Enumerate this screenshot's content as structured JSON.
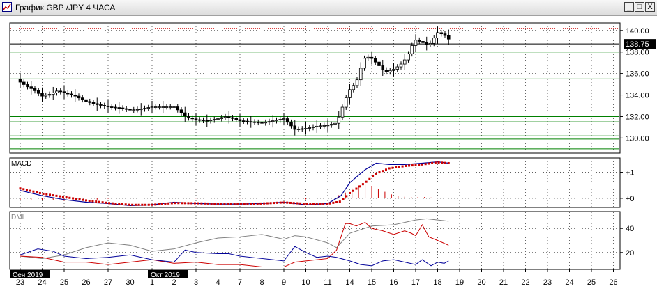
{
  "window": {
    "title": "График GBP /JPY  4 ЧАСА",
    "buttons": {
      "minimize": "_",
      "maximize": "□",
      "close": "X"
    }
  },
  "chart_data": [
    {
      "type": "candlestick",
      "title": "",
      "x_tick_labels": [
        "23",
        "24",
        "25",
        "26",
        "27",
        "30",
        "1",
        "2",
        "3",
        "4",
        "7",
        "8",
        "9",
        "10",
        "11",
        "14",
        "15",
        "16",
        "17",
        "18",
        "19",
        "20",
        "21",
        "22",
        "23",
        "24",
        "25",
        "26"
      ],
      "period_labels": [
        "Сен 2019",
        "Окт 2019"
      ],
      "ylim": [
        128.6,
        140.7
      ],
      "y_ticks": [
        130.0,
        132.0,
        134.0,
        136.0,
        138.0,
        140.0
      ],
      "y_tick_labels": [
        "130.00",
        "132.00",
        "134.00",
        "136.00",
        "138.00",
        "140.00"
      ],
      "current_price": 138.75,
      "current_price_label": "138.75",
      "horizontal_levels": [
        {
          "value": 140.2,
          "color": "#cc0000",
          "style": "dotted"
        },
        {
          "value": 138.75,
          "color": "#000000",
          "style": "solid"
        },
        {
          "value": 138.0,
          "color": "#008000",
          "style": "solid"
        },
        {
          "value": 135.5,
          "color": "#008000",
          "style": "solid"
        },
        {
          "value": 134.0,
          "color": "#008000",
          "style": "solid"
        },
        {
          "value": 132.0,
          "color": "#008000",
          "style": "solid"
        },
        {
          "value": 131.5,
          "color": "#008000",
          "style": "solid"
        },
        {
          "value": 130.2,
          "color": "#008000",
          "style": "solid"
        },
        {
          "value": 129.9,
          "color": "#008000",
          "style": "solid"
        },
        {
          "value": 129.0,
          "color": "#008000",
          "style": "solid"
        }
      ],
      "close_path": [
        [
          0,
          135.2
        ],
        [
          0.3,
          134.8
        ],
        [
          0.6,
          134.5
        ],
        [
          1.0,
          133.9
        ],
        [
          1.4,
          134.1
        ],
        [
          1.7,
          134.4
        ],
        [
          2.0,
          134.2
        ],
        [
          2.5,
          133.9
        ],
        [
          3.0,
          133.4
        ],
        [
          3.5,
          133.1
        ],
        [
          4.0,
          132.9
        ],
        [
          4.5,
          132.8
        ],
        [
          5.0,
          132.6
        ],
        [
          5.5,
          132.7
        ],
        [
          6.0,
          132.9
        ],
        [
          6.5,
          132.9
        ],
        [
          7.0,
          132.9
        ],
        [
          7.3,
          132.4
        ],
        [
          7.6,
          131.9
        ],
        [
          8.0,
          131.7
        ],
        [
          8.5,
          131.6
        ],
        [
          9.0,
          131.8
        ],
        [
          9.3,
          132.0
        ],
        [
          9.7,
          131.8
        ],
        [
          10.0,
          131.6
        ],
        [
          10.5,
          131.5
        ],
        [
          11.0,
          131.4
        ],
        [
          11.5,
          131.6
        ],
        [
          12.0,
          131.8
        ],
        [
          12.2,
          131.4
        ],
        [
          12.5,
          130.8
        ],
        [
          13.0,
          130.9
        ],
        [
          13.5,
          131.1
        ],
        [
          14.0,
          131.2
        ],
        [
          14.4,
          131.4
        ],
        [
          14.6,
          132.5
        ],
        [
          14.8,
          133.6
        ],
        [
          15.0,
          134.5
        ],
        [
          15.3,
          135.2
        ],
        [
          15.5,
          136.5
        ],
        [
          15.7,
          137.6
        ],
        [
          16.0,
          137.4
        ],
        [
          16.3,
          136.8
        ],
        [
          16.6,
          136.1
        ],
        [
          17.0,
          136.4
        ],
        [
          17.3,
          136.8
        ],
        [
          17.6,
          137.5
        ],
        [
          17.8,
          138.5
        ],
        [
          18.0,
          139.1
        ],
        [
          18.3,
          138.9
        ],
        [
          18.6,
          138.6
        ],
        [
          18.8,
          139.2
        ],
        [
          19.0,
          139.8
        ],
        [
          19.3,
          139.6
        ],
        [
          19.5,
          139.2
        ]
      ],
      "candle_x_start": 0,
      "candle_x_end": 19.5,
      "candle_count": 118,
      "bar_width_days": 0.12,
      "wick_pad": [
        0.25,
        0.55
      ],
      "candle_colors": {
        "bull": "#ffffff",
        "bear": "#000000",
        "wick": "#000000"
      }
    },
    {
      "type": "line",
      "title": "MACD",
      "y_tick_labels": [
        "+1",
        "+0"
      ],
      "y_ticks": [
        1,
        0
      ],
      "ylim": [
        -0.35,
        1.55
      ],
      "series": [
        {
          "role": "macd",
          "color": "#000099",
          "points": [
            [
              0,
              0.3
            ],
            [
              1,
              0.1
            ],
            [
              2,
              -0.05
            ],
            [
              3,
              -0.15
            ],
            [
              4,
              -0.2
            ],
            [
              5,
              -0.28
            ],
            [
              6,
              -0.25
            ],
            [
              7,
              -0.15
            ],
            [
              8,
              -0.2
            ],
            [
              9,
              -0.22
            ],
            [
              10,
              -0.22
            ],
            [
              11,
              -0.2
            ],
            [
              12,
              -0.15
            ],
            [
              13,
              -0.25
            ],
            [
              14,
              -0.2
            ],
            [
              14.6,
              0.1
            ],
            [
              15,
              0.6
            ],
            [
              15.7,
              1.1
            ],
            [
              16.2,
              1.35
            ],
            [
              16.8,
              1.3
            ],
            [
              17.5,
              1.3
            ],
            [
              18.3,
              1.35
            ],
            [
              19,
              1.4
            ],
            [
              19.5,
              1.35
            ]
          ]
        },
        {
          "role": "signal",
          "color": "#cc0000",
          "points": [
            [
              0,
              0.38
            ],
            [
              1,
              0.18
            ],
            [
              2,
              0.05
            ],
            [
              3,
              -0.08
            ],
            [
              4,
              -0.18
            ],
            [
              5,
              -0.25
            ],
            [
              6,
              -0.25
            ],
            [
              7,
              -0.18
            ],
            [
              8,
              -0.19
            ],
            [
              9,
              -0.21
            ],
            [
              10,
              -0.21
            ],
            [
              11,
              -0.2
            ],
            [
              12,
              -0.16
            ],
            [
              13,
              -0.21
            ],
            [
              14,
              -0.21
            ],
            [
              14.6,
              -0.12
            ],
            [
              15,
              0.2
            ],
            [
              15.7,
              0.6
            ],
            [
              16.2,
              0.95
            ],
            [
              16.8,
              1.15
            ],
            [
              17.5,
              1.24
            ],
            [
              18.3,
              1.3
            ],
            [
              19,
              1.38
            ],
            [
              19.5,
              1.35
            ]
          ]
        }
      ],
      "histogram": [
        [
          0,
          -0.08
        ],
        [
          0.5,
          -0.08
        ],
        [
          1,
          -0.08
        ],
        [
          1.5,
          -0.08
        ],
        [
          2,
          -0.1
        ],
        [
          2.5,
          -0.09
        ],
        [
          3,
          -0.07
        ],
        [
          3.5,
          -0.05
        ],
        [
          4,
          -0.02
        ],
        [
          5,
          -0.03
        ],
        [
          6,
          0.0
        ],
        [
          7,
          0.03
        ],
        [
          8,
          -0.01
        ],
        [
          9,
          -0.01
        ],
        [
          10,
          -0.01
        ],
        [
          11,
          0.0
        ],
        [
          12,
          0.01
        ],
        [
          13,
          -0.04
        ],
        [
          14,
          0.01
        ],
        [
          14.5,
          0.12
        ],
        [
          14.8,
          0.22
        ],
        [
          15.1,
          0.38
        ],
        [
          15.4,
          0.48
        ],
        [
          15.7,
          0.52
        ],
        [
          16.0,
          0.48
        ],
        [
          16.3,
          0.35
        ],
        [
          16.6,
          0.25
        ],
        [
          16.9,
          0.15
        ],
        [
          17.2,
          0.08
        ],
        [
          17.5,
          0.06
        ],
        [
          17.8,
          0.05
        ],
        [
          18.1,
          0.05
        ],
        [
          18.4,
          0.05
        ],
        [
          18.7,
          0.03
        ],
        [
          19.0,
          0.02
        ],
        [
          19.3,
          0.01
        ]
      ]
    },
    {
      "type": "line",
      "title": "DMI",
      "y_tick_labels": [
        "40",
        "20"
      ],
      "y_ticks": [
        40,
        20
      ],
      "ylim": [
        6,
        54
      ],
      "series": [
        {
          "role": "adx",
          "color": "#808080",
          "points": [
            [
              0,
              17
            ],
            [
              1,
              15
            ],
            [
              2,
              18
            ],
            [
              3,
              24
            ],
            [
              4,
              28
            ],
            [
              5,
              26
            ],
            [
              6,
              21
            ],
            [
              7,
              23
            ],
            [
              8,
              28
            ],
            [
              9,
              32
            ],
            [
              10,
              33
            ],
            [
              11,
              35
            ],
            [
              12,
              31
            ],
            [
              12.5,
              34
            ],
            [
              13,
              33
            ],
            [
              14,
              28
            ],
            [
              14.4,
              24
            ],
            [
              15,
              36
            ],
            [
              16,
              42
            ],
            [
              17,
              43
            ],
            [
              18,
              47
            ],
            [
              18.5,
              48
            ],
            [
              19,
              47
            ],
            [
              19.5,
              46
            ]
          ]
        },
        {
          "role": "plus_di",
          "color": "#cc0000",
          "points": [
            [
              0,
              17
            ],
            [
              1,
              16
            ],
            [
              2,
              12
            ],
            [
              3,
              12
            ],
            [
              4,
              10
            ],
            [
              5,
              12
            ],
            [
              6,
              14
            ],
            [
              7,
              11
            ],
            [
              8,
              12
            ],
            [
              9,
              10
            ],
            [
              10,
              10
            ],
            [
              11,
              8
            ],
            [
              12,
              8
            ],
            [
              12.5,
              12
            ],
            [
              13,
              13
            ],
            [
              14,
              15
            ],
            [
              14.4,
              22
            ],
            [
              14.8,
              44
            ],
            [
              15,
              44
            ],
            [
              15.3,
              42
            ],
            [
              15.7,
              45
            ],
            [
              16,
              40
            ],
            [
              16.5,
              38
            ],
            [
              17,
              35
            ],
            [
              17.5,
              38
            ],
            [
              17.8,
              36
            ],
            [
              18,
              34
            ],
            [
              18.3,
              43
            ],
            [
              18.6,
              33
            ],
            [
              19,
              30
            ],
            [
              19.5,
              26
            ]
          ]
        },
        {
          "role": "minus_di",
          "color": "#000099",
          "points": [
            [
              0,
              18
            ],
            [
              0.8,
              23
            ],
            [
              1.5,
              21
            ],
            [
              2,
              17
            ],
            [
              3,
              15
            ],
            [
              4,
              16
            ],
            [
              5,
              18
            ],
            [
              6,
              14
            ],
            [
              7,
              12
            ],
            [
              7.5,
              22
            ],
            [
              8,
              20
            ],
            [
              9,
              19
            ],
            [
              9.5,
              19
            ],
            [
              10,
              17
            ],
            [
              11,
              15
            ],
            [
              12,
              13
            ],
            [
              12.5,
              25
            ],
            [
              13,
              20
            ],
            [
              13.5,
              16
            ],
            [
              14,
              17
            ],
            [
              14.4,
              16
            ],
            [
              15,
              13
            ],
            [
              15.5,
              10
            ],
            [
              16,
              9
            ],
            [
              16.5,
              13
            ],
            [
              17,
              14
            ],
            [
              17.5,
              12
            ],
            [
              18,
              10
            ],
            [
              18.3,
              14
            ],
            [
              18.7,
              9
            ],
            [
              19,
              12
            ],
            [
              19.3,
              11
            ],
            [
              19.5,
              13
            ]
          ]
        }
      ]
    }
  ]
}
